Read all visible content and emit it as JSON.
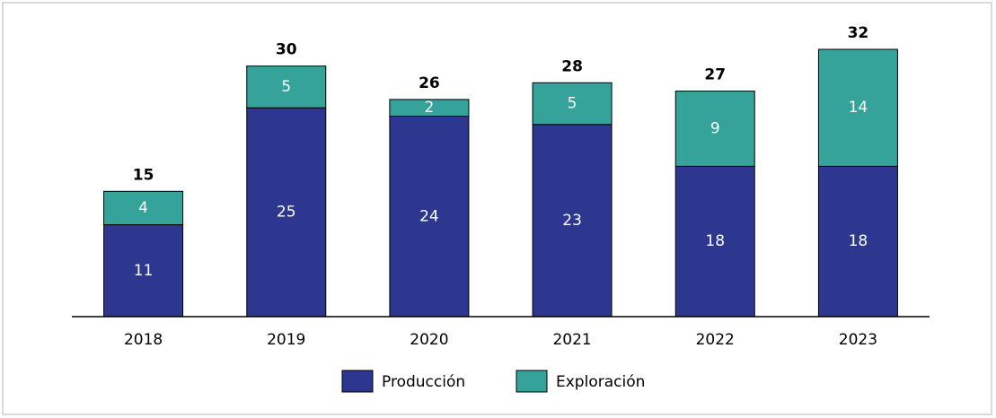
{
  "chart_data": {
    "type": "stacked_bar",
    "categories": [
      "2018",
      "2019",
      "2020",
      "2021",
      "2022",
      "2023"
    ],
    "series": [
      {
        "name": "Producción",
        "color": "#2e3790",
        "values": [
          11,
          25,
          24,
          23,
          18,
          18
        ]
      },
      {
        "name": "Exploración",
        "color": "#36a39b",
        "values": [
          4,
          5,
          2,
          5,
          9,
          14
        ]
      }
    ],
    "totals": [
      15,
      30,
      26,
      28,
      27,
      32
    ],
    "legend": "bottom"
  }
}
